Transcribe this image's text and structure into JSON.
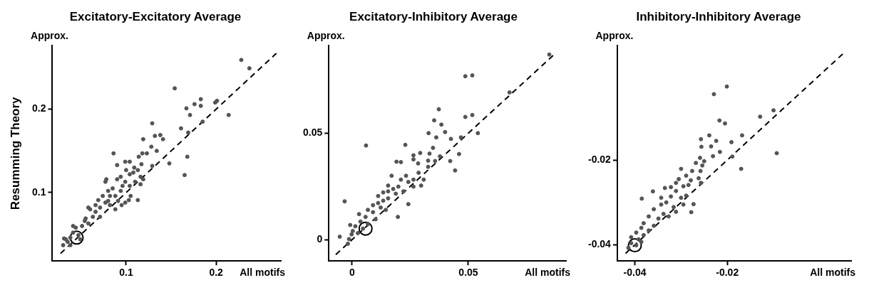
{
  "chart_data": [
    {
      "type": "scatter",
      "title": "Excitatory-Excitatory Average",
      "xlabel": "All motifs",
      "ylabel": "Approx.",
      "annotations": [
        "Resumming Theory"
      ],
      "xlim": [
        0.018,
        0.272
      ],
      "ylim": [
        0.018,
        0.276
      ],
      "xticks": [
        0.1,
        0.2
      ],
      "yticks": [
        0.1,
        0.2
      ],
      "marker": "circle",
      "series": [
        {
          "color": "#555555",
          "x": [
            0.228,
            0.237,
            0.154,
            0.167,
            0.176,
            0.183,
            0.183,
            0.199,
            0.201,
            0.214,
            0.171,
            0.185,
            0.129,
            0.161,
            0.169,
            0.119,
            0.132,
            0.138,
            0.141,
            0.128,
            0.086,
            0.118,
            0.123,
            0.134,
            0.114,
            0.099,
            0.104,
            0.09,
            0.129,
            0.148,
            0.168,
            0.165,
            0.117,
            0.113,
            0.108,
            0.116,
            0.078,
            0.09,
            0.099,
            0.104,
            0.116,
            0.119,
            0.113,
            0.103,
            0.099,
            0.095,
            0.08,
            0.082,
            0.088,
            0.074,
            0.069,
            0.077,
            0.082,
            0.088,
            0.071,
            0.066,
            0.06,
            0.058,
            0.063,
            0.055,
            0.058,
            0.051,
            0.054,
            0.044,
            0.041,
            0.047,
            0.038,
            0.033,
            0.031,
            0.035,
            0.041,
            0.03,
            0.038,
            0.049,
            0.094,
            0.096,
            0.077,
            0.1,
            0.109,
            0.104,
            0.11,
            0.094,
            0.066,
            0.071,
            0.105,
            0.08,
            0.091,
            0.085
          ],
          "values": [
            0.259,
            0.249,
            0.225,
            0.201,
            0.206,
            0.212,
            0.204,
            0.208,
            0.21,
            0.193,
            0.193,
            0.185,
            0.183,
            0.177,
            0.172,
            0.164,
            0.168,
            0.169,
            0.164,
            0.155,
            0.147,
            0.147,
            0.147,
            0.15,
            0.143,
            0.137,
            0.137,
            0.133,
            0.132,
            0.135,
            0.143,
            0.121,
            0.134,
            0.127,
            0.124,
            0.119,
            0.116,
            0.116,
            0.113,
            0.108,
            0.11,
            0.116,
            0.091,
            0.091,
            0.088,
            0.085,
            0.102,
            0.096,
            0.096,
            0.096,
            0.091,
            0.088,
            0.085,
            0.08,
            0.082,
            0.077,
            0.08,
            0.082,
            0.071,
            0.069,
            0.063,
            0.06,
            0.066,
            0.058,
            0.052,
            0.049,
            0.046,
            0.044,
            0.045,
            0.041,
            0.06,
            0.037,
            0.037,
            0.044,
            0.102,
            0.108,
            0.113,
            0.127,
            0.13,
            0.122,
            0.113,
            0.119,
            0.085,
            0.071,
            0.096,
            0.09,
            0.09,
            0.105
          ]
        },
        {
          "type": "line",
          "color": "#000000",
          "line_style": "dashed",
          "marker": "none",
          "x": [
            0.027,
            0.267
          ],
          "values": [
            0.027,
            0.267
          ]
        },
        {
          "type": "bubble",
          "color": "#000000",
          "x": [
            0.045
          ],
          "values": [
            0.046
          ],
          "sizes": [
            1
          ]
        }
      ]
    },
    {
      "type": "scatter",
      "title": "Excitatory-Inhibitory Average",
      "xlabel": "All motifs",
      "ylabel": "Approx.",
      "xlim": [
        -0.01,
        0.092
      ],
      "ylim": [
        -0.01,
        0.091
      ],
      "xticks": [
        0,
        0.05
      ],
      "yticks": [
        0,
        0.05
      ],
      "marker": "circle",
      "series": [
        {
          "color": "#555555",
          "x": [
            0.0848,
            0.0487,
            0.0517,
            0.0677,
            0.0373,
            0.0353,
            0.0487,
            0.0517,
            0.0384,
            0.04,
            0.0329,
            0.0541,
            0.0362,
            0.0425,
            0.0468,
            0.006,
            0.0229,
            0.0348,
            0.0264,
            0.0293,
            0.0333,
            0.046,
            0.0378,
            0.0264,
            0.0327,
            0.0191,
            0.021,
            0.0422,
            0.0284,
            0.0357,
            0.0327,
            0.0443,
            0.017,
            0.0232,
            0.021,
            0.0264,
            0.0286,
            0.0242,
            0.0308,
            0.0155,
            0.0199,
            0.0297,
            0.0155,
            0.0112,
            0.0188,
            0.0242,
            0.0197,
            -0.0032,
            0.003,
            0.0112,
            0.0134,
            0.009,
            0.0123,
            0.009,
            0.0068,
            0.0145,
            0.0058,
            0.0101,
            0.0036,
            0.0068,
            0.0014,
            0.0047,
            -0.0008,
            0.0003,
            0.0025,
            -0.0013,
            -0.0002,
            -0.0053,
            -0.0018,
            0.0177,
            0.0221,
            0.0155,
            0.0264,
            0.0134
          ],
          "values": [
            0.0869,
            0.0767,
            0.0771,
            0.0691,
            0.0612,
            0.056,
            0.0576,
            0.0585,
            0.054,
            0.0505,
            0.05,
            0.05,
            0.048,
            0.0473,
            0.048,
            0.0442,
            0.0445,
            0.0431,
            0.0396,
            0.0407,
            0.0404,
            0.0402,
            0.0391,
            0.0377,
            0.0371,
            0.0366,
            0.0364,
            0.0369,
            0.0358,
            0.0369,
            0.0342,
            0.0325,
            0.03,
            0.03,
            0.0282,
            0.0282,
            0.0314,
            0.0271,
            0.0282,
            0.0254,
            0.0249,
            0.0254,
            0.0227,
            0.0205,
            0.0216,
            0.0167,
            0.0107,
            0.018,
            0.012,
            0.0172,
            0.0183,
            0.0162,
            0.0151,
            0.0129,
            0.014,
            0.014,
            0.0107,
            0.0096,
            0.0085,
            0.0074,
            0.0063,
            0.0052,
            0.0069,
            0.0041,
            0.0031,
            0.0003,
            0.0025,
            0.0014,
            -0.0019,
            0.0238,
            0.0227,
            0.0194,
            0.0249,
            0.0222
          ]
        },
        {
          "type": "line",
          "color": "#000000",
          "line_style": "dashed",
          "marker": "none",
          "x": [
            -0.007,
            0.087
          ],
          "values": [
            -0.007,
            0.087
          ]
        },
        {
          "type": "bubble",
          "color": "#000000",
          "x": [
            0.0058
          ],
          "values": [
            0.0052
          ],
          "sizes": [
            1
          ]
        }
      ]
    },
    {
      "type": "scatter",
      "title": "Inhibitory-Inhibitory Average",
      "xlabel": "All motifs",
      "ylabel": "Approx.",
      "xlim": [
        -0.0438,
        0.0068
      ],
      "ylim": [
        -0.0438,
        0.0069
      ],
      "xticks": [
        -0.04,
        -0.02
      ],
      "yticks": [
        -0.04,
        -0.02
      ],
      "marker": "circle",
      "series": [
        {
          "color": "#555555",
          "x": [
            -0.0201,
            -0.0229,
            -0.01,
            -0.0129,
            -0.0217,
            -0.0205,
            -0.0239,
            -0.0257,
            -0.0224,
            -0.0191,
            -0.0168,
            -0.0256,
            -0.0235,
            -0.0216,
            -0.0093,
            -0.0189,
            -0.0259,
            -0.0231,
            -0.025,
            -0.0268,
            -0.0254,
            -0.017,
            -0.03,
            -0.0276,
            -0.0258,
            -0.0289,
            -0.0262,
            -0.0279,
            -0.0257,
            -0.0311,
            -0.0284,
            -0.0335,
            -0.0361,
            -0.0311,
            -0.0289,
            -0.0322,
            -0.03,
            -0.0385,
            -0.0273,
            -0.0278,
            -0.0332,
            -0.0343,
            -0.0316,
            -0.0359,
            -0.0338,
            -0.0311,
            -0.037,
            -0.0349,
            -0.0327,
            -0.0381,
            -0.0359,
            -0.0386,
            -0.037,
            -0.0397,
            -0.0381,
            -0.0408,
            -0.0392,
            -0.0408,
            -0.0397,
            -0.0414,
            -0.0386,
            -0.0295,
            -0.0305,
            -0.0322,
            -0.0343,
            -0.0295
          ],
          "values": [
            -0.0027,
            -0.0045,
            -0.0083,
            -0.0098,
            -0.0107,
            -0.0114,
            -0.0142,
            -0.0151,
            -0.0155,
            -0.0158,
            -0.0142,
            -0.0169,
            -0.0168,
            -0.0181,
            -0.0184,
            -0.0192,
            -0.0195,
            -0.0191,
            -0.0203,
            -0.0207,
            -0.0213,
            -0.0221,
            -0.0221,
            -0.0226,
            -0.0226,
            -0.0237,
            -0.0243,
            -0.0248,
            -0.0254,
            -0.0254,
            -0.0259,
            -0.0266,
            -0.0274,
            -0.0273,
            -0.0284,
            -0.0286,
            -0.0289,
            -0.0291,
            -0.0304,
            -0.0323,
            -0.03,
            -0.0305,
            -0.0311,
            -0.0316,
            -0.0327,
            -0.0322,
            -0.0333,
            -0.0338,
            -0.0333,
            -0.0349,
            -0.0355,
            -0.036,
            -0.0366,
            -0.0371,
            -0.0377,
            -0.0382,
            -0.0387,
            -0.0396,
            -0.0401,
            -0.0407,
            -0.0393,
            -0.0262,
            -0.0245,
            -0.0264,
            -0.0289,
            -0.0305
          ]
        },
        {
          "type": "line",
          "color": "#000000",
          "line_style": "dashed",
          "marker": "none",
          "x": [
            -0.042,
            0.005
          ],
          "values": [
            -0.042,
            0.005
          ]
        },
        {
          "type": "bubble",
          "color": "#000000",
          "x": [
            -0.04
          ],
          "values": [
            -0.0401
          ],
          "sizes": [
            1
          ]
        }
      ]
    }
  ]
}
